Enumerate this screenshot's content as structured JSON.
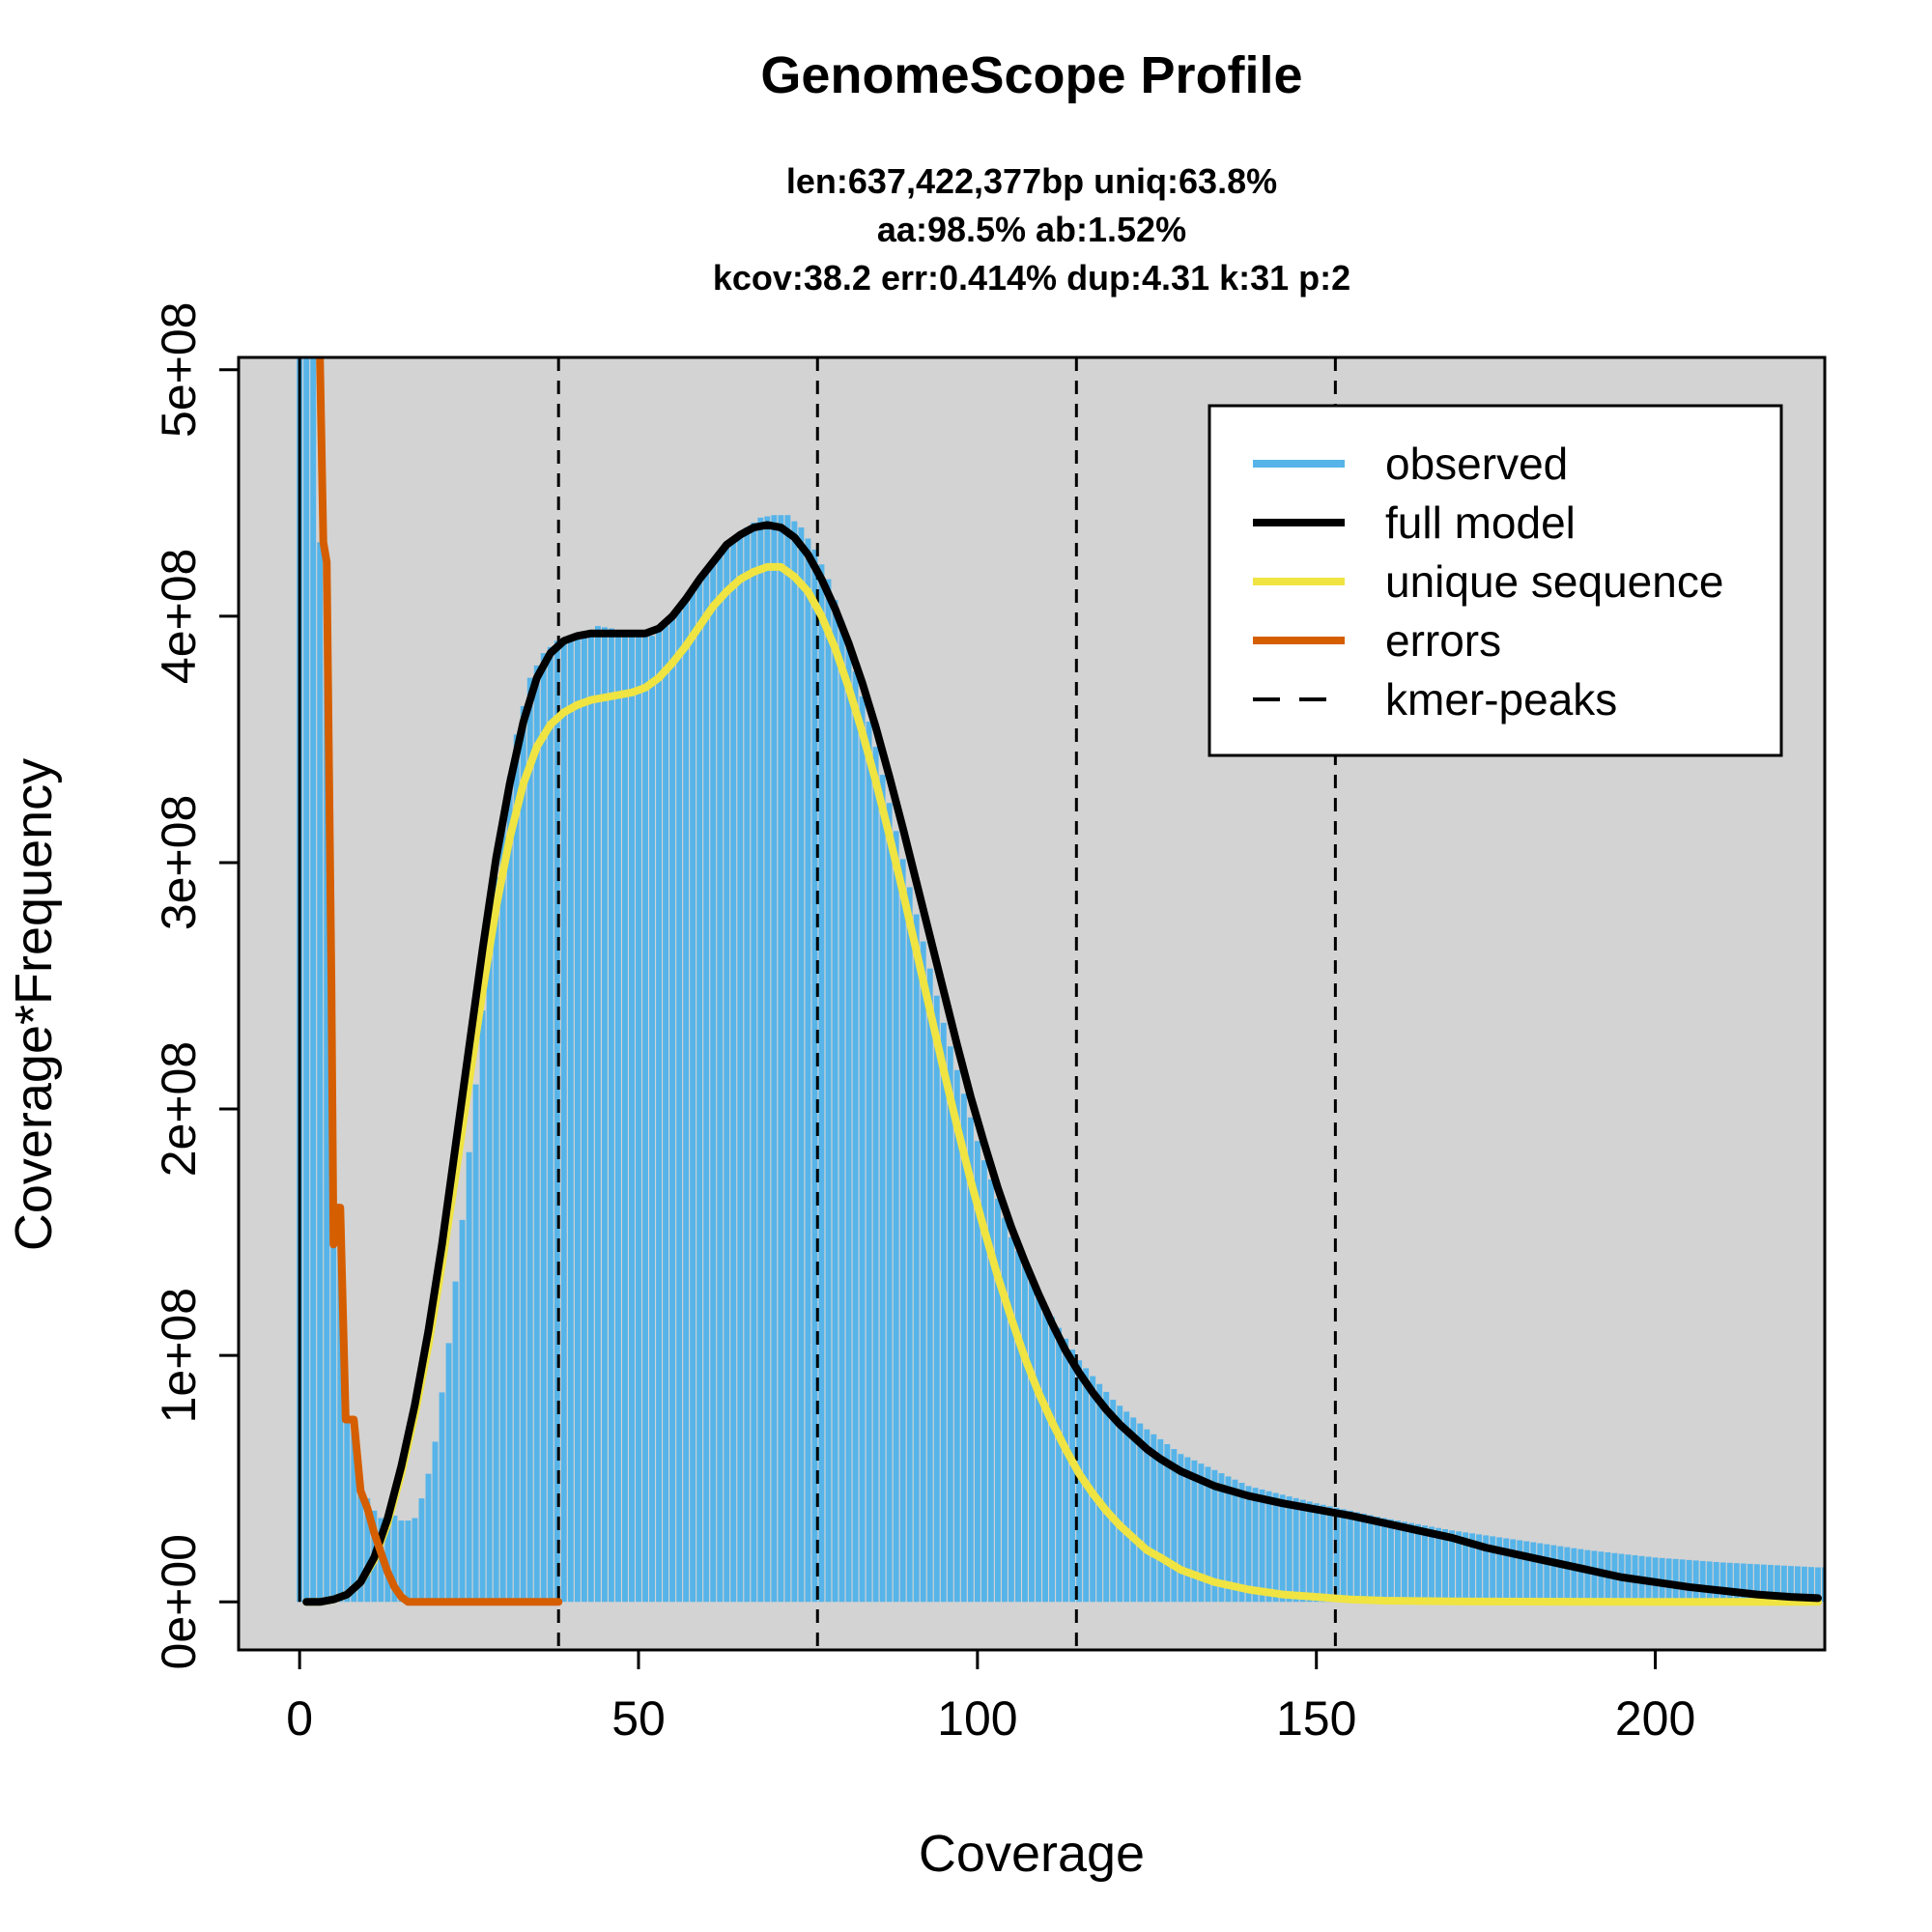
{
  "chart_data": {
    "type": "line",
    "title": "GenomeScope Profile",
    "subtitle_lines": [
      "len:637,422,377bp uniq:63.8%",
      "aa:98.5% ab:1.52%",
      "kcov:38.2 err:0.414%  dup:4.31  k:31 p:2"
    ],
    "xlabel": "Coverage",
    "ylabel": "Coverage*Frequency",
    "xlim": [
      -9,
      225
    ],
    "ylim": [
      -19500000,
      505000000
    ],
    "x_ticks": [
      0,
      50,
      100,
      150,
      200
    ],
    "x_tick_labels": [
      "0",
      "50",
      "100",
      "150",
      "200"
    ],
    "y_ticks": [
      0,
      100000000,
      200000000,
      300000000,
      400000000,
      500000000
    ],
    "y_tick_labels": [
      "0e+00",
      "1e+08",
      "2e+08",
      "3e+08",
      "4e+08",
      "5e+08"
    ],
    "background_color": "#d3d3d3",
    "grid": false,
    "legend_position": "top-right",
    "kmer_peaks": [
      38.2,
      76.4,
      114.6,
      152.8
    ],
    "series": [
      {
        "name": "observed",
        "kind": "histogram",
        "color": "#56b4e9",
        "points": [
          [
            0,
            540000000
          ],
          [
            2,
            540000000
          ],
          [
            3,
            430000000
          ],
          [
            4,
            420000000
          ],
          [
            5,
            145000000
          ],
          [
            6,
            160000000
          ],
          [
            7,
            75000000
          ],
          [
            8,
            75000000
          ],
          [
            9,
            45000000
          ],
          [
            10,
            42000000
          ],
          [
            11,
            37000000
          ],
          [
            12,
            34000000
          ],
          [
            13,
            34000000
          ],
          [
            14,
            35000000
          ],
          [
            15,
            33000000
          ],
          [
            16,
            33000000
          ],
          [
            17,
            34000000
          ],
          [
            18,
            42000000
          ],
          [
            19,
            52000000
          ],
          [
            20,
            65000000
          ],
          [
            22,
            105000000
          ],
          [
            24,
            155000000
          ],
          [
            26,
            210000000
          ],
          [
            28,
            270000000
          ],
          [
            30,
            318000000
          ],
          [
            32,
            352000000
          ],
          [
            34,
            375000000
          ],
          [
            36,
            385000000
          ],
          [
            38,
            390000000
          ],
          [
            40,
            392000000
          ],
          [
            42,
            393000000
          ],
          [
            44,
            396000000
          ],
          [
            46,
            395000000
          ],
          [
            48,
            393000000
          ],
          [
            50,
            392000000
          ],
          [
            52,
            392000000
          ],
          [
            54,
            396000000
          ],
          [
            56,
            402000000
          ],
          [
            58,
            410000000
          ],
          [
            60,
            418000000
          ],
          [
            62,
            425000000
          ],
          [
            64,
            431000000
          ],
          [
            66,
            436000000
          ],
          [
            68,
            440000000
          ],
          [
            70,
            441000000
          ],
          [
            72,
            441000000
          ],
          [
            74,
            436000000
          ],
          [
            76,
            427000000
          ],
          [
            78,
            415000000
          ],
          [
            80,
            398000000
          ],
          [
            85,
            347000000
          ],
          [
            90,
            290000000
          ],
          [
            95,
            235000000
          ],
          [
            100,
            187000000
          ],
          [
            105,
            148000000
          ],
          [
            110,
            120000000
          ],
          [
            115,
            98000000
          ],
          [
            120,
            82000000
          ],
          [
            125,
            70000000
          ],
          [
            130,
            60000000
          ],
          [
            140,
            47000000
          ],
          [
            150,
            40000000
          ],
          [
            160,
            34000000
          ],
          [
            170,
            29000000
          ],
          [
            180,
            25000000
          ],
          [
            190,
            21000000
          ],
          [
            200,
            18000000
          ],
          [
            210,
            16000000
          ],
          [
            224,
            14000000
          ]
        ]
      },
      {
        "name": "full model",
        "color": "#000000",
        "points": [
          [
            1,
            0
          ],
          [
            3,
            0
          ],
          [
            5,
            1000000
          ],
          [
            7,
            3000000
          ],
          [
            9,
            8000000
          ],
          [
            11,
            18000000
          ],
          [
            13,
            34000000
          ],
          [
            15,
            55000000
          ],
          [
            17,
            80000000
          ],
          [
            19,
            110000000
          ],
          [
            21,
            145000000
          ],
          [
            23,
            185000000
          ],
          [
            25,
            225000000
          ],
          [
            27,
            265000000
          ],
          [
            29,
            302000000
          ],
          [
            31,
            332000000
          ],
          [
            33,
            357000000
          ],
          [
            35,
            375000000
          ],
          [
            37,
            385000000
          ],
          [
            39,
            390000000
          ],
          [
            41,
            392000000
          ],
          [
            43,
            393000000
          ],
          [
            45,
            393000000
          ],
          [
            47,
            393000000
          ],
          [
            49,
            393000000
          ],
          [
            51,
            393000000
          ],
          [
            53,
            395000000
          ],
          [
            55,
            400000000
          ],
          [
            57,
            407000000
          ],
          [
            59,
            415000000
          ],
          [
            61,
            422000000
          ],
          [
            63,
            429000000
          ],
          [
            65,
            433000000
          ],
          [
            67,
            436000000
          ],
          [
            69,
            437000000
          ],
          [
            71,
            436000000
          ],
          [
            73,
            432000000
          ],
          [
            75,
            425000000
          ],
          [
            77,
            415000000
          ],
          [
            79,
            403000000
          ],
          [
            81,
            389000000
          ],
          [
            83,
            373000000
          ],
          [
            85,
            355000000
          ],
          [
            87,
            335000000
          ],
          [
            89,
            314000000
          ],
          [
            91,
            292000000
          ],
          [
            93,
            270000000
          ],
          [
            95,
            248000000
          ],
          [
            97,
            226000000
          ],
          [
            99,
            205000000
          ],
          [
            101,
            186000000
          ],
          [
            103,
            168000000
          ],
          [
            105,
            152000000
          ],
          [
            107,
            138000000
          ],
          [
            109,
            125000000
          ],
          [
            111,
            113000000
          ],
          [
            113,
            102000000
          ],
          [
            115,
            93000000
          ],
          [
            117,
            85000000
          ],
          [
            119,
            78000000
          ],
          [
            121,
            72000000
          ],
          [
            123,
            67000000
          ],
          [
            125,
            62000000
          ],
          [
            127,
            58000000
          ],
          [
            130,
            53000000
          ],
          [
            135,
            47000000
          ],
          [
            140,
            43000000
          ],
          [
            145,
            40000000
          ],
          [
            150,
            37500000
          ],
          [
            155,
            35000000
          ],
          [
            160,
            32000000
          ],
          [
            165,
            29000000
          ],
          [
            170,
            26000000
          ],
          [
            175,
            22000000
          ],
          [
            180,
            19000000
          ],
          [
            185,
            16000000
          ],
          [
            190,
            13000000
          ],
          [
            195,
            10000000
          ],
          [
            200,
            8000000
          ],
          [
            205,
            6000000
          ],
          [
            210,
            4500000
          ],
          [
            215,
            3000000
          ],
          [
            220,
            2000000
          ],
          [
            224,
            1500000
          ]
        ]
      },
      {
        "name": "unique sequence",
        "color": "#f0e442",
        "points": [
          [
            1,
            0
          ],
          [
            3,
            0
          ],
          [
            5,
            1000000
          ],
          [
            7,
            3000000
          ],
          [
            9,
            8000000
          ],
          [
            11,
            17000000
          ],
          [
            13,
            32000000
          ],
          [
            15,
            52000000
          ],
          [
            17,
            76000000
          ],
          [
            19,
            104000000
          ],
          [
            21,
            137000000
          ],
          [
            23,
            173000000
          ],
          [
            25,
            211000000
          ],
          [
            27,
            248000000
          ],
          [
            29,
            282000000
          ],
          [
            31,
            310000000
          ],
          [
            33,
            332000000
          ],
          [
            35,
            347000000
          ],
          [
            37,
            356000000
          ],
          [
            39,
            361000000
          ],
          [
            41,
            364000000
          ],
          [
            43,
            366000000
          ],
          [
            45,
            367000000
          ],
          [
            47,
            368000000
          ],
          [
            49,
            369000000
          ],
          [
            51,
            371000000
          ],
          [
            53,
            375000000
          ],
          [
            55,
            381000000
          ],
          [
            57,
            388000000
          ],
          [
            59,
            396000000
          ],
          [
            61,
            404000000
          ],
          [
            63,
            410000000
          ],
          [
            65,
            415000000
          ],
          [
            67,
            418000000
          ],
          [
            69,
            420000000
          ],
          [
            71,
            420000000
          ],
          [
            73,
            416000000
          ],
          [
            75,
            410000000
          ],
          [
            77,
            400000000
          ],
          [
            79,
            387000000
          ],
          [
            81,
            371000000
          ],
          [
            83,
            353000000
          ],
          [
            85,
            333000000
          ],
          [
            87,
            311000000
          ],
          [
            89,
            288000000
          ],
          [
            91,
            264000000
          ],
          [
            93,
            240000000
          ],
          [
            95,
            216000000
          ],
          [
            97,
            193000000
          ],
          [
            99,
            171000000
          ],
          [
            101,
            151000000
          ],
          [
            103,
            132000000
          ],
          [
            105,
            115000000
          ],
          [
            107,
            99000000
          ],
          [
            109,
            85000000
          ],
          [
            111,
            73000000
          ],
          [
            113,
            62000000
          ],
          [
            115,
            52000000
          ],
          [
            117,
            44000000
          ],
          [
            119,
            37000000
          ],
          [
            121,
            31000000
          ],
          [
            123,
            26000000
          ],
          [
            125,
            21000000
          ],
          [
            127,
            18000000
          ],
          [
            130,
            13000000
          ],
          [
            135,
            8000000
          ],
          [
            140,
            5000000
          ],
          [
            145,
            3000000
          ],
          [
            150,
            2000000
          ],
          [
            155,
            1000000
          ],
          [
            160,
            500000
          ],
          [
            170,
            200000
          ],
          [
            180,
            100000
          ],
          [
            200,
            0
          ],
          [
            224,
            0
          ]
        ]
      },
      {
        "name": "errors",
        "color": "#d55e00",
        "points": [
          [
            2,
            600000000
          ],
          [
            3,
            505000000
          ],
          [
            3.5,
            430000000
          ],
          [
            4,
            422000000
          ],
          [
            4.7,
            250000000
          ],
          [
            5,
            145000000
          ],
          [
            5.5,
            160000000
          ],
          [
            6,
            160000000
          ],
          [
            6.8,
            74000000
          ],
          [
            8,
            74000000
          ],
          [
            9,
            45000000
          ],
          [
            10,
            38000000
          ],
          [
            11,
            28000000
          ],
          [
            12,
            20000000
          ],
          [
            13,
            12000000
          ],
          [
            14,
            6000000
          ],
          [
            15,
            2000000
          ],
          [
            16,
            0
          ],
          [
            38.2,
            0
          ]
        ]
      },
      {
        "name": "kmer-peaks",
        "kind": "vline",
        "color": "#000000",
        "dash": true
      }
    ]
  }
}
